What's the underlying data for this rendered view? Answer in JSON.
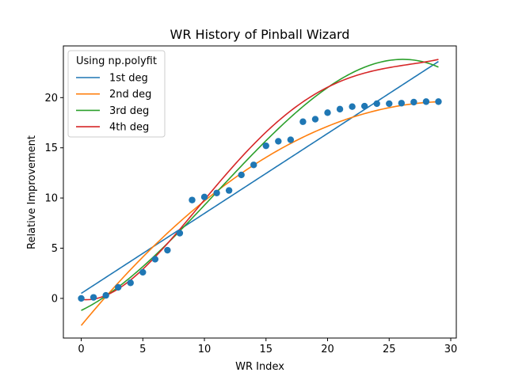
{
  "chart_data": {
    "type": "scatter",
    "title": "WR History of Pinball Wizard",
    "xlabel": "WR Index",
    "ylabel": "Relative Improvement",
    "xlim": [
      -1.45,
      30.45
    ],
    "ylim": [
      -3.95,
      25.15
    ],
    "xticks": [
      0,
      5,
      10,
      15,
      20,
      25,
      30
    ],
    "yticks": [
      0,
      5,
      10,
      15,
      20
    ],
    "grid": false,
    "legend": {
      "title": "Using np.polyfit",
      "placement": "top-left"
    },
    "points": {
      "color": "#1f77b4",
      "x": [
        0,
        1,
        2,
        3,
        4,
        5,
        6,
        7,
        8,
        9,
        10,
        11,
        12,
        13,
        14,
        15,
        16,
        17,
        18,
        19,
        20,
        21,
        22,
        23,
        24,
        25,
        26,
        27,
        28,
        29
      ],
      "y": [
        0.0,
        0.1,
        0.3,
        1.1,
        1.55,
        2.6,
        3.9,
        4.8,
        6.5,
        9.8,
        10.1,
        10.5,
        10.75,
        12.3,
        13.3,
        15.2,
        15.65,
        15.8,
        17.6,
        17.85,
        18.5,
        18.85,
        19.1,
        19.15,
        19.4,
        19.4,
        19.45,
        19.55,
        19.6,
        19.6
      ]
    },
    "series": [
      {
        "name": "1st deg",
        "color": "#1f77b4",
        "coefficients": [
          0.5,
          0.7964
        ]
      },
      {
        "name": "2nd deg",
        "color": "#ff7f0e",
        "coefficients": [
          -2.7,
          1.4889,
          -0.02484
        ]
      },
      {
        "name": "3rd deg",
        "color": "#2ca02c",
        "coefficients": [
          -1.2,
          0.6,
          0.0641,
          -0.00193
        ]
      },
      {
        "name": "4th deg",
        "color": "#d62728",
        "coefficients": [
          -0.1,
          -0.1533,
          0.1937,
          -0.0092,
          0.000127
        ]
      }
    ]
  }
}
